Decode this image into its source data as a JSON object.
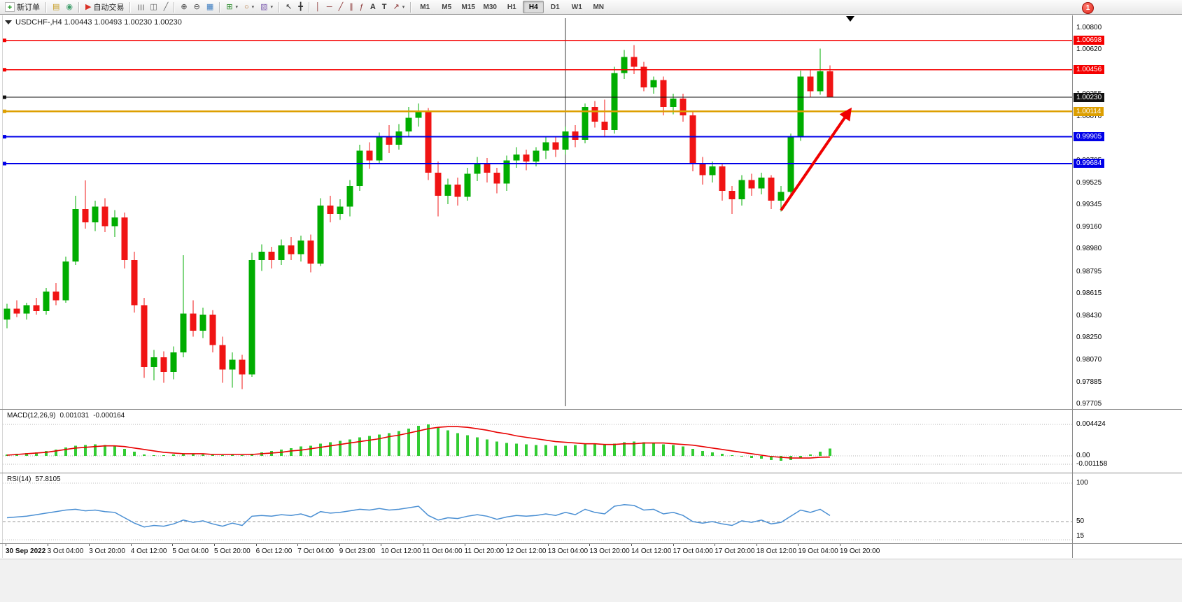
{
  "window": {
    "notification_badge": "1"
  },
  "toolbar": {
    "items": [
      {
        "t": "btn",
        "name": "new-order",
        "icon": "new-order-icon",
        "glyph": "+",
        "label": "新订单"
      },
      {
        "t": "sep"
      },
      {
        "t": "btn",
        "name": "new-chart",
        "icon": "new-chart-icon",
        "glyph": "▤"
      },
      {
        "t": "btn",
        "name": "profiles",
        "icon": "profiles-icon",
        "glyph": "◉"
      },
      {
        "t": "sep"
      },
      {
        "t": "btn",
        "name": "auto-trading",
        "icon": "auto-trading-icon",
        "glyph": "▶",
        "label": "自动交易"
      },
      {
        "t": "sep"
      },
      {
        "t": "btn",
        "name": "chart-bars",
        "icon": "bar-chart-icon",
        "glyph": "☰"
      },
      {
        "t": "btn",
        "name": "chart-candles",
        "icon": "candlestick-icon",
        "glyph": "◫"
      },
      {
        "t": "btn",
        "name": "chart-line",
        "icon": "line-chart-icon",
        "glyph": "╱"
      },
      {
        "t": "sep"
      },
      {
        "t": "btn",
        "name": "zoom-in",
        "icon": "zoom-in-icon",
        "glyph": "⊕"
      },
      {
        "t": "btn",
        "name": "zoom-out",
        "icon": "zoom-out-icon",
        "glyph": "⊖"
      },
      {
        "t": "btn",
        "name": "grid",
        "icon": "grid-icon",
        "glyph": "▦"
      },
      {
        "t": "sep"
      },
      {
        "t": "btn",
        "name": "indicators",
        "icon": "indicators-icon",
        "glyph": "⊞",
        "dd": true
      },
      {
        "t": "btn",
        "name": "periods",
        "icon": "periods-icon",
        "glyph": "○",
        "dd": true
      },
      {
        "t": "btn",
        "name": "templates",
        "icon": "templates-icon",
        "glyph": "▧",
        "dd": true
      },
      {
        "t": "sep"
      },
      {
        "t": "btn",
        "name": "cursor",
        "icon": "cursor-icon",
        "glyph": "↖"
      },
      {
        "t": "btn",
        "name": "crosshair",
        "icon": "crosshair-icon",
        "glyph": "╋"
      },
      {
        "t": "sep"
      },
      {
        "t": "btn",
        "name": "vertical-line",
        "icon": "vertical-line-icon",
        "glyph": "│"
      },
      {
        "t": "btn",
        "name": "horizontal-line",
        "icon": "horizontal-line-icon",
        "glyph": "─"
      },
      {
        "t": "btn",
        "name": "trendline",
        "icon": "trendline-icon",
        "glyph": "╱"
      },
      {
        "t": "btn",
        "name": "channel",
        "icon": "channel-icon",
        "glyph": "∥"
      },
      {
        "t": "btn",
        "name": "fibonacci",
        "icon": "fibonacci-icon",
        "glyph": "ƒ"
      },
      {
        "t": "btn",
        "name": "text",
        "icon": "text-icon",
        "glyph": "A"
      },
      {
        "t": "btn",
        "name": "text-label",
        "icon": "text-label-icon",
        "glyph": "T"
      },
      {
        "t": "btn",
        "name": "arrows",
        "icon": "arrows-icon",
        "glyph": "↗",
        "dd": true
      },
      {
        "t": "sep"
      },
      {
        "t": "tf",
        "label": "M1"
      },
      {
        "t": "tf",
        "label": "M5"
      },
      {
        "t": "tf",
        "label": "M15"
      },
      {
        "t": "tf",
        "label": "M30"
      },
      {
        "t": "tf",
        "label": "H1"
      },
      {
        "t": "tf",
        "label": "H4",
        "active": true
      },
      {
        "t": "tf",
        "label": "D1"
      },
      {
        "t": "tf",
        "label": "W1"
      },
      {
        "t": "tf",
        "label": "MN"
      }
    ]
  },
  "chart": {
    "title": "USDCHF-,H4  1.00443 1.00493 1.00230 1.00230",
    "symbol": "USDCHF-",
    "timeframe": "H4"
  },
  "indicators": {
    "macd": {
      "label": "MACD(12,26,9)",
      "value": "0.001031",
      "signal": "-0.000164",
      "axis": [
        {
          "text": "0.004424",
          "v": 0.004424
        },
        {
          "text": "0.00",
          "v": 0
        },
        {
          "text": "-0.001158",
          "v": -0.001158
        }
      ]
    },
    "rsi": {
      "label": "RSI(14)",
      "value": "57.8105",
      "axis": [
        {
          "text": "100",
          "v": 100
        },
        {
          "text": "50",
          "v": 50
        },
        {
          "text": "15",
          "v": 15
        }
      ]
    }
  },
  "price_axis": {
    "labels": [
      "1.00800",
      "1.00620",
      "1.00440",
      "1.00255",
      "1.00070",
      "0.99890",
      "0.99705",
      "0.99525",
      "0.99345",
      "0.99160",
      "0.98980",
      "0.98795",
      "0.98615",
      "0.98430",
      "0.98250",
      "0.98070",
      "0.97885",
      "0.97705"
    ]
  },
  "time_axis": {
    "labels": [
      "30 Sep 2022",
      "3 Oct 04:00",
      "3 Oct 20:00",
      "4 Oct 12:00",
      "5 Oct 04:00",
      "5 Oct 20:00",
      "6 Oct 12:00",
      "7 Oct 04:00",
      "9 Oct 23:00",
      "10 Oct 12:00",
      "11 Oct 04:00",
      "11 Oct 20:00",
      "12 Oct 12:00",
      "13 Oct 04:00",
      "13 Oct 20:00",
      "14 Oct 12:00",
      "17 Oct 04:00",
      "17 Oct 20:00",
      "18 Oct 12:00",
      "19 Oct 04:00",
      "19 Oct 20:00"
    ]
  },
  "chart_data": {
    "type": "candlestick",
    "symbol": "USDCHF",
    "period": "H4",
    "colors": {
      "bull": "#00ad00",
      "bear": "#f01414",
      "macd_hist": "#33cc33",
      "macd_signal": "#e80000",
      "rsi": "#4a8fd3"
    },
    "candles": [
      [
        0.984,
        0.9853,
        0.9833,
        0.9849
      ],
      [
        0.9849,
        0.9856,
        0.9842,
        0.9845
      ],
      [
        0.9845,
        0.9854,
        0.984,
        0.9852
      ],
      [
        0.9852,
        0.9858,
        0.9844,
        0.9847
      ],
      [
        0.9847,
        0.9866,
        0.9844,
        0.9863
      ],
      [
        0.9863,
        0.987,
        0.9852,
        0.9856
      ],
      [
        0.9856,
        0.9892,
        0.9854,
        0.9888
      ],
      [
        0.9888,
        0.9942,
        0.9885,
        0.9931
      ],
      [
        0.9931,
        0.99545,
        0.9915,
        0.992
      ],
      [
        0.992,
        0.9938,
        0.9913,
        0.9933
      ],
      [
        0.9933,
        0.994,
        0.9912,
        0.9917
      ],
      [
        0.9917,
        0.993,
        0.9908,
        0.9924
      ],
      [
        0.9924,
        0.9928,
        0.9882,
        0.9889
      ],
      [
        0.9889,
        0.9896,
        0.9846,
        0.9852
      ],
      [
        0.9852,
        0.9858,
        0.9792,
        0.9801
      ],
      [
        0.9801,
        0.9815,
        0.979,
        0.9809
      ],
      [
        0.9809,
        0.9814,
        0.9788,
        0.9797
      ],
      [
        0.9797,
        0.9818,
        0.9791,
        0.9813
      ],
      [
        0.9813,
        0.9893,
        0.9809,
        0.9845
      ],
      [
        0.9845,
        0.9856,
        0.9826,
        0.9831
      ],
      [
        0.9831,
        0.985,
        0.9825,
        0.9844
      ],
      [
        0.9844,
        0.9848,
        0.9813,
        0.9819
      ],
      [
        0.9819,
        0.9826,
        0.9788,
        0.9799
      ],
      [
        0.9799,
        0.9813,
        0.9784,
        0.9807
      ],
      [
        0.9807,
        0.9811,
        0.9783,
        0.9795
      ],
      [
        0.9795,
        0.9895,
        0.9793,
        0.9889
      ],
      [
        0.9889,
        0.9902,
        0.988,
        0.9896
      ],
      [
        0.9896,
        0.99,
        0.9882,
        0.9889
      ],
      [
        0.9889,
        0.9906,
        0.9885,
        0.9901
      ],
      [
        0.9901,
        0.9908,
        0.9889,
        0.9894
      ],
      [
        0.9894,
        0.9909,
        0.9888,
        0.9905
      ],
      [
        0.9905,
        0.991,
        0.9879,
        0.9886
      ],
      [
        0.9886,
        0.994,
        0.9884,
        0.9934
      ],
      [
        0.9934,
        0.9942,
        0.992,
        0.9927
      ],
      [
        0.9927,
        0.9939,
        0.9922,
        0.9933
      ],
      [
        0.9933,
        0.9955,
        0.9925,
        0.995
      ],
      [
        0.995,
        0.9984,
        0.9946,
        0.9979
      ],
      [
        0.9979,
        0.9986,
        0.9964,
        0.9971
      ],
      [
        0.9971,
        0.9994,
        0.9968,
        0.999
      ],
      [
        0.999,
        1.0,
        0.9977,
        0.9984
      ],
      [
        0.9984,
        1.0001,
        0.998,
        0.9995
      ],
      [
        0.9995,
        1.0015,
        0.999,
        1.0006
      ],
      [
        1.0006,
        1.0018,
        0.9999,
        1.0012
      ],
      [
        1.0012,
        1.0014,
        0.9955,
        0.9961
      ],
      [
        0.9961,
        0.997,
        0.9925,
        0.9942
      ],
      [
        0.9942,
        0.9956,
        0.9935,
        0.9951
      ],
      [
        0.9951,
        0.9957,
        0.9934,
        0.9941
      ],
      [
        0.9941,
        0.9965,
        0.9938,
        0.996
      ],
      [
        0.996,
        0.9974,
        0.9954,
        0.9969
      ],
      [
        0.9969,
        0.9973,
        0.9953,
        0.9961
      ],
      [
        0.9961,
        0.9965,
        0.9944,
        0.9952
      ],
      [
        0.9952,
        0.9975,
        0.9946,
        0.9971
      ],
      [
        0.9971,
        0.9982,
        0.9965,
        0.9976
      ],
      [
        0.9976,
        0.998,
        0.9963,
        0.997
      ],
      [
        0.997,
        0.9982,
        0.9966,
        0.9979
      ],
      [
        0.9979,
        0.999,
        0.9972,
        0.9986
      ],
      [
        0.9986,
        0.9991,
        0.9974,
        0.998
      ],
      [
        0.998,
        0.9999,
        0.9976,
        0.9995
      ],
      [
        0.9995,
        1.0,
        0.9982,
        0.9988
      ],
      [
        0.9988,
        1.0018,
        0.9985,
        1.0015
      ],
      [
        1.0015,
        1.002,
        0.9998,
        1.0003
      ],
      [
        1.0003,
        1.0021,
        0.999,
        0.9996
      ],
      [
        0.9996,
        1.0048,
        0.9993,
        1.0043
      ],
      [
        1.0043,
        1.0062,
        1.0038,
        1.0056
      ],
      [
        1.0056,
        1.0066,
        1.0042,
        1.0048
      ],
      [
        1.0048,
        1.0052,
        1.0028,
        1.0031
      ],
      [
        1.0031,
        1.004,
        1.0026,
        1.0037
      ],
      [
        1.0037,
        1.004,
        1.0008,
        1.0015
      ],
      [
        1.0015,
        1.0026,
        1.0009,
        1.0022
      ],
      [
        1.0022,
        1.0026,
        1.0003,
        1.0008
      ],
      [
        1.0008,
        1.0011,
        0.9962,
        0.9969
      ],
      [
        0.9969,
        0.9974,
        0.9951,
        0.9959
      ],
      [
        0.9959,
        0.997,
        0.9953,
        0.9966
      ],
      [
        0.9966,
        0.9968,
        0.9938,
        0.9946
      ],
      [
        0.9946,
        0.995,
        0.9927,
        0.9939
      ],
      [
        0.9939,
        0.9959,
        0.9934,
        0.9955
      ],
      [
        0.9955,
        0.996,
        0.9942,
        0.9948
      ],
      [
        0.9948,
        0.9961,
        0.9943,
        0.9957
      ],
      [
        0.9957,
        0.9959,
        0.9931,
        0.9938
      ],
      [
        0.9938,
        0.995,
        0.9929,
        0.9945
      ],
      [
        0.9945,
        0.9993,
        0.9942,
        0.999
      ],
      [
        0.999,
        1.0045,
        0.9987,
        1.004
      ],
      [
        1.004,
        1.0046,
        1.0023,
        1.0028
      ],
      [
        1.0028,
        1.0063,
        1.0025,
        1.00443
      ],
      [
        1.00443,
        1.00493,
        1.0023,
        1.0023
      ]
    ],
    "hlines": [
      {
        "price": 1.00698,
        "label": "1.00698",
        "color": "#f50000",
        "width": 1.4
      },
      {
        "price": 1.00456,
        "label": "1.00456",
        "color": "#f50000",
        "width": 1.4
      },
      {
        "price": 1.0023,
        "label": "1.00230",
        "color": "#111111",
        "width": 1
      },
      {
        "price": 1.00114,
        "label": "1.00114",
        "color": "#dd9f00",
        "width": 2.4
      },
      {
        "price": 0.99905,
        "label": "0.99905",
        "color": "#0000e8",
        "width": 2
      },
      {
        "price": 0.99684,
        "label": "0.99684",
        "color": "#0000e8",
        "width": 2
      }
    ],
    "vline_bar": 57,
    "arrow": {
      "from_bar": 79,
      "from_price": 0.993,
      "to_bar": 86,
      "to_price": 1.0012,
      "color": "#f00000"
    },
    "macd_histogram": [
      0.0002,
      0.0003,
      0.0004,
      0.0005,
      0.0007,
      0.0009,
      0.0012,
      0.0014,
      0.0015,
      0.0016,
      0.0015,
      0.0013,
      0.001,
      0.0006,
      0.0002,
      0.0001,
      0.0001,
      0.0002,
      0.0003,
      0.0003,
      0.0002,
      0.0002,
      0.0001,
      0.0002,
      0.0001,
      0.0003,
      0.0005,
      0.0007,
      0.0009,
      0.0011,
      0.0013,
      0.0014,
      0.0017,
      0.0019,
      0.0021,
      0.0023,
      0.0026,
      0.0028,
      0.003,
      0.0032,
      0.0035,
      0.0038,
      0.0042,
      0.0044,
      0.004,
      0.0036,
      0.0032,
      0.0029,
      0.0026,
      0.0023,
      0.002,
      0.0018,
      0.0017,
      0.0016,
      0.0015,
      0.0015,
      0.0014,
      0.0014,
      0.0015,
      0.0016,
      0.0016,
      0.0015,
      0.0017,
      0.0019,
      0.002,
      0.0019,
      0.0018,
      0.0016,
      0.0015,
      0.0013,
      0.001,
      0.0007,
      0.0005,
      0.0003,
      0.0001,
      -0.0001,
      -0.0003,
      -0.0004,
      -0.0006,
      -0.0007,
      -0.0006,
      -0.0003,
      0.0002,
      0.0006,
      0.001031
    ],
    "macd_signal": [
      0.0001,
      0.0002,
      0.0003,
      0.0004,
      0.0005,
      0.0007,
      0.0009,
      0.0011,
      0.0012,
      0.0013,
      0.0014,
      0.0014,
      0.0013,
      0.0011,
      0.0009,
      0.0007,
      0.0005,
      0.0004,
      0.0003,
      0.0003,
      0.0003,
      0.0002,
      0.0002,
      0.0002,
      0.0002,
      0.0002,
      0.0003,
      0.0004,
      0.0005,
      0.0007,
      0.0008,
      0.001,
      0.0012,
      0.0014,
      0.0016,
      0.0018,
      0.002,
      0.0022,
      0.0024,
      0.0027,
      0.0029,
      0.0032,
      0.0035,
      0.0038,
      0.004,
      0.0041,
      0.0041,
      0.004,
      0.0038,
      0.0036,
      0.0033,
      0.0031,
      0.0028,
      0.0026,
      0.0024,
      0.0022,
      0.002,
      0.0019,
      0.0018,
      0.0017,
      0.0017,
      0.0016,
      0.0016,
      0.0017,
      0.0017,
      0.0018,
      0.0018,
      0.0018,
      0.0017,
      0.0016,
      0.0015,
      0.0013,
      0.0011,
      0.0009,
      0.0007,
      0.0005,
      0.0003,
      0.0001,
      -0.0001,
      -0.0002,
      -0.0003,
      -0.0003,
      -0.0003,
      -0.0002,
      -0.000164
    ],
    "rsi": [
      55,
      56,
      57,
      59,
      61,
      63,
      65,
      66,
      64,
      65,
      63,
      62,
      55,
      48,
      43,
      45,
      44,
      47,
      52,
      49,
      51,
      47,
      44,
      48,
      45,
      57,
      58,
      57,
      59,
      58,
      60,
      56,
      63,
      61,
      62,
      64,
      66,
      65,
      67,
      65,
      66,
      68,
      70,
      58,
      52,
      55,
      54,
      57,
      59,
      57,
      53,
      56,
      58,
      57,
      58,
      60,
      58,
      62,
      59,
      66,
      62,
      60,
      70,
      72,
      71,
      65,
      66,
      60,
      62,
      58,
      50,
      48,
      50,
      47,
      45,
      51,
      49,
      52,
      47,
      49,
      57,
      65,
      62,
      66,
      57.81
    ]
  }
}
